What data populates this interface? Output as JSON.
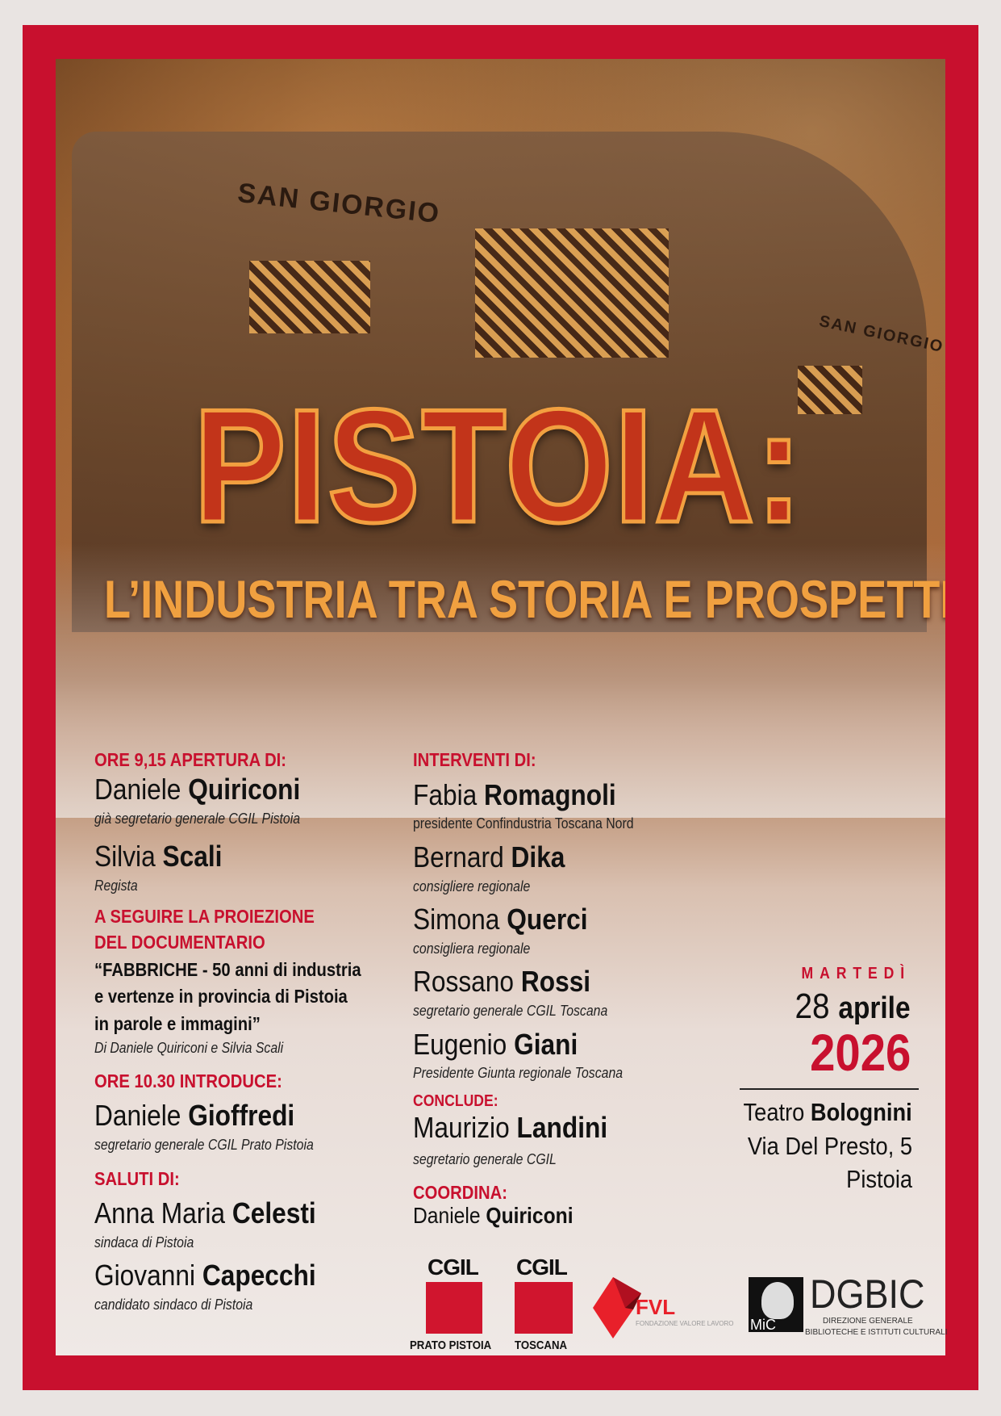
{
  "colors": {
    "frame": "#c8102e",
    "accent": "#c8102e",
    "title": "#c2341a",
    "subtitle": "#f0a040"
  },
  "photo": {
    "sign_main": "SAN GIORGIO",
    "sign_side": "SAN GIORGIO"
  },
  "title": "PISTOIA:",
  "subtitle": "L’INDUSTRIA TRA STORIA E PROSPETTIVE",
  "left": {
    "opening_head": "ORE 9,15 APERTURA DI:",
    "p1": {
      "first": "Daniele ",
      "last": "Quiriconi",
      "role": "già segretario generale CGIL Pistoia"
    },
    "p2": {
      "first": "Silvia ",
      "last": "Scali",
      "role": "Regista"
    },
    "screening_head_1": "A SEGUIRE LA PROIEZIONE",
    "screening_head_2": "DEL DOCUMENTARIO",
    "doc_line_1": "“FABBRICHE - 50 anni di industria",
    "doc_line_2": "e vertenze in provincia di Pistoia",
    "doc_line_3": "in parole e immagini”",
    "doc_credit": "Di Daniele Quiriconi e Silvia Scali",
    "intro_head": "ORE 10.30 INTRODUCE:",
    "p3": {
      "first": "Daniele ",
      "last": "Gioffredi",
      "role": "segretario generale CGIL Prato Pistoia"
    },
    "greet_head": "SALUTI DI:",
    "p4": {
      "first": "Anna Maria ",
      "last": "Celesti",
      "role": "sindaca di Pistoia"
    },
    "p5": {
      "first": "Giovanni ",
      "last": "Capecchi",
      "role": "candidato sindaco di Pistoia"
    }
  },
  "middle": {
    "speakers_head": "INTERVENTI DI:",
    "s1": {
      "first": "Fabia ",
      "last": "Romagnoli",
      "role": "presidente Confindustria Toscana Nord"
    },
    "s2": {
      "first": "Bernard ",
      "last": "Dika",
      "role": "consigliere regionale"
    },
    "s3": {
      "first": "Simona ",
      "last": "Querci",
      "role": "consigliera regionale"
    },
    "s4": {
      "first": "Rossano ",
      "last": "Rossi",
      "role": "segretario generale CGIL Toscana"
    },
    "s5": {
      "first": "Eugenio ",
      "last": "Giani",
      "role": "Presidente Giunta regionale Toscana"
    },
    "conclude_head": "CONCLUDE:",
    "s6": {
      "first": "Maurizio ",
      "last": "Landini",
      "role": "segretario generale CGIL"
    },
    "coord_head": "COORDINA:",
    "coord": {
      "first": "Daniele ",
      "last": "Quiriconi"
    }
  },
  "event": {
    "weekday": "MARTEDÌ",
    "day": "28",
    "month": "aprile",
    "year": "2026",
    "venue_first": "Teatro ",
    "venue_last": "Bolognini",
    "address": "Via Del Presto, 5",
    "city": "Pistoia"
  },
  "logos": {
    "cgil1": {
      "name": "CGIL",
      "label": "PRATO PISTOIA"
    },
    "cgil2": {
      "name": "CGIL",
      "label": "TOSCANA"
    },
    "fvl": {
      "name": "FVL",
      "tagline": "FONDAZIONE VALORE LAVORO"
    },
    "mic": {
      "name": "MiC"
    },
    "dgbic": {
      "name": "DGBIC",
      "line1": "DIREZIONE GENERALE",
      "line2": "BIBLIOTECHE E ISTITUTI CULTURALI"
    }
  }
}
